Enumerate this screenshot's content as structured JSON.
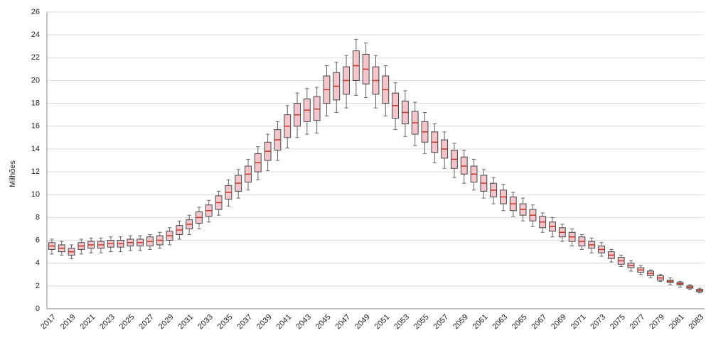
{
  "chart_data": {
    "type": "boxplot",
    "y_label": "Milhões",
    "categories": [
      "2017",
      null,
      "2019",
      null,
      "2021",
      null,
      "2023",
      null,
      "2025",
      null,
      "2027",
      null,
      "2029",
      null,
      "2031",
      null,
      "2033",
      null,
      "2035",
      null,
      "2037",
      null,
      "2039",
      null,
      "2041",
      null,
      "2043",
      null,
      "2045",
      null,
      "2047",
      null,
      "2049",
      null,
      "2051",
      null,
      "2053",
      null,
      "2055",
      null,
      "2057",
      null,
      "2059",
      null,
      "2061",
      null,
      "2063",
      null,
      "2065",
      null,
      "2067",
      null,
      "2069",
      null,
      "2071",
      null,
      "2073",
      null,
      "2075",
      null,
      "2077",
      null,
      "2079",
      null,
      "2081",
      null,
      "2083"
    ],
    "min": [
      4.8,
      4.7,
      4.4,
      4.8,
      4.9,
      4.9,
      5.0,
      5.0,
      5.1,
      5.1,
      5.2,
      5.3,
      5.6,
      6.1,
      6.5,
      7.0,
      7.6,
      8.2,
      9.0,
      9.7,
      10.4,
      11.3,
      12.1,
      13.0,
      14.1,
      15.0,
      15.3,
      15.4,
      16.9,
      17.2,
      17.6,
      18.7,
      18.5,
      17.6,
      16.9,
      15.7,
      15.1,
      14.3,
      13.6,
      12.8,
      12.3,
      11.5,
      11.0,
      10.4,
      9.7,
      9.2,
      8.6,
      8.1,
      7.7,
      7.2,
      6.7,
      6.3,
      5.9,
      5.5,
      5.2,
      4.9,
      4.6,
      4.1,
      3.7,
      3.3,
      3.0,
      2.7,
      2.4,
      2.1,
      1.9,
      1.7,
      1.4
    ],
    "q1": [
      5.2,
      5.0,
      4.7,
      5.2,
      5.3,
      5.3,
      5.4,
      5.4,
      5.5,
      5.5,
      5.5,
      5.6,
      6.0,
      6.5,
      7.0,
      7.5,
      8.1,
      8.7,
      9.6,
      10.3,
      11.1,
      12.0,
      13.0,
      13.9,
      15.0,
      16.0,
      16.4,
      16.5,
      18.0,
      18.3,
      18.8,
      20.0,
      19.7,
      18.8,
      18.0,
      16.7,
      16.2,
      15.3,
      14.6,
      13.7,
      13.2,
      12.3,
      11.8,
      11.1,
      10.3,
      9.8,
      9.2,
      8.6,
      8.2,
      7.7,
      7.1,
      6.8,
      6.3,
      5.9,
      5.5,
      5.3,
      4.9,
      4.4,
      3.9,
      3.6,
      3.2,
      2.9,
      2.5,
      2.3,
      2.1,
      1.8,
      1.5
    ],
    "median": [
      5.5,
      5.3,
      5.0,
      5.5,
      5.6,
      5.6,
      5.7,
      5.7,
      5.8,
      5.8,
      5.9,
      6.0,
      6.4,
      6.9,
      7.4,
      8.0,
      8.6,
      9.3,
      10.2,
      11.0,
      11.8,
      12.8,
      13.8,
      14.8,
      16.0,
      17.0,
      17.4,
      17.5,
      19.2,
      19.5,
      20.0,
      21.3,
      21.0,
      20.0,
      19.2,
      17.8,
      17.2,
      16.3,
      15.5,
      14.6,
      14.0,
      13.1,
      12.5,
      11.8,
      11.0,
      10.4,
      9.8,
      9.2,
      8.7,
      8.2,
      7.6,
      7.2,
      6.7,
      6.3,
      5.9,
      5.6,
      5.2,
      4.7,
      4.2,
      3.8,
      3.4,
      3.1,
      2.7,
      2.4,
      2.2,
      1.9,
      1.6
    ],
    "q3": [
      5.8,
      5.6,
      5.3,
      5.8,
      5.9,
      5.9,
      6.0,
      6.0,
      6.1,
      6.1,
      6.3,
      6.4,
      6.8,
      7.3,
      7.8,
      8.5,
      9.1,
      9.9,
      10.8,
      11.7,
      12.5,
      13.6,
      14.6,
      15.7,
      17.0,
      18.0,
      18.4,
      18.6,
      20.4,
      20.7,
      21.2,
      22.6,
      22.3,
      21.2,
      20.4,
      18.9,
      18.2,
      17.3,
      16.4,
      15.5,
      14.8,
      13.9,
      13.3,
      12.5,
      11.7,
      11.0,
      10.4,
      9.8,
      9.2,
      8.7,
      8.1,
      7.6,
      7.1,
      6.7,
      6.3,
      5.9,
      5.5,
      5.0,
      4.5,
      4.0,
      3.6,
      3.3,
      2.9,
      2.5,
      2.3,
      2.0,
      1.7
    ],
    "max": [
      6.1,
      5.9,
      5.6,
      6.1,
      6.2,
      6.2,
      6.3,
      6.3,
      6.4,
      6.4,
      6.5,
      6.7,
      7.1,
      7.7,
      8.2,
      8.9,
      9.5,
      10.3,
      11.3,
      12.2,
      13.1,
      14.2,
      15.3,
      16.4,
      17.8,
      18.9,
      19.3,
      19.4,
      21.3,
      21.6,
      22.2,
      23.6,
      23.3,
      22.2,
      21.3,
      19.8,
      19.1,
      18.1,
      17.2,
      16.2,
      15.5,
      14.5,
      13.9,
      13.1,
      12.2,
      11.5,
      10.9,
      10.2,
      9.7,
      9.1,
      8.4,
      8.0,
      7.4,
      7.0,
      6.5,
      6.2,
      5.8,
      5.2,
      4.7,
      4.2,
      3.8,
      3.4,
      3.0,
      2.7,
      2.4,
      2.1,
      1.8
    ],
    "box_color": "#f3c6cb",
    "median_color": "#c0392b",
    "whisker_color": "#666666",
    "ylim": [
      0,
      26
    ],
    "yticks": [
      0,
      2,
      4,
      6,
      8,
      10,
      12,
      14,
      16,
      18,
      20,
      22,
      24,
      26
    ],
    "grid": true
  }
}
